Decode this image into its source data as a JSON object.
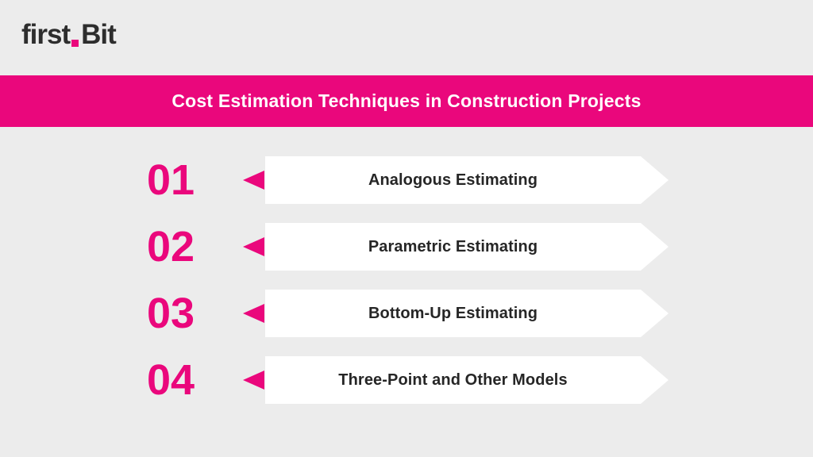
{
  "brand": {
    "name_part1": "first",
    "name_part2": "Bit"
  },
  "header": {
    "title": "Cost Estimation Techniques in Construction Projects"
  },
  "list": {
    "items": [
      {
        "number": "01",
        "label": "Analogous Estimating"
      },
      {
        "number": "02",
        "label": "Parametric Estimating"
      },
      {
        "number": "03",
        "label": "Bottom-Up Estimating"
      },
      {
        "number": "04",
        "label": "Three-Point and Other Models"
      }
    ]
  },
  "colors": {
    "accent_pink": "#EA077C",
    "background": "#ECECEC",
    "banner_white": "#FFFFFF",
    "title_text": "#FFFFFF",
    "text_dark": "#262626",
    "logo_dark": "#2D2D2D"
  }
}
